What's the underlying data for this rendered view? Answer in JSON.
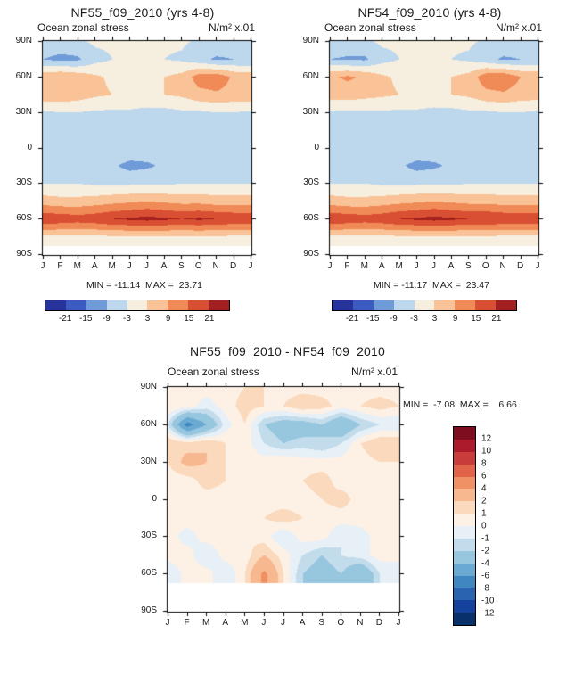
{
  "page": {
    "background": "#ffffff"
  },
  "chart_data": [
    {
      "type": "heatmap",
      "title": "NF55_f09_2010 (yrs 4-8)",
      "field": "Ocean zonal stress",
      "units": "N/m² x.01",
      "stats": "MIN = -11.14  MAX =  23.71",
      "min": -11.14,
      "max": 23.71,
      "x_ticks": [
        "J",
        "F",
        "M",
        "A",
        "M",
        "J",
        "J",
        "A",
        "S",
        "O",
        "N",
        "D",
        "J"
      ],
      "y_ticks": [
        "90N",
        "60N",
        "30N",
        "0",
        "30S",
        "60S",
        "90S"
      ],
      "lats": [
        90,
        75,
        60,
        45,
        30,
        15,
        0,
        -15,
        -30,
        -45,
        -60,
        -75,
        -90
      ],
      "values": [
        [
          -4,
          -4,
          -4,
          -2,
          -2,
          -1,
          -1,
          -2,
          -2,
          -4,
          -4,
          -4,
          -4
        ],
        [
          -9,
          -11,
          -10,
          -5,
          -3,
          -2,
          -2,
          -3,
          -4,
          -7,
          -10,
          -9,
          -9
        ],
        [
          7,
          9,
          7,
          4,
          2,
          2,
          2,
          3,
          5,
          12,
          13,
          8,
          7
        ],
        [
          7,
          7,
          6,
          4,
          3,
          2,
          2,
          3,
          4,
          7,
          8,
          7,
          7
        ],
        [
          -4,
          -3,
          -3,
          -4,
          -4,
          -4,
          -5,
          -5,
          -4,
          -4,
          -3,
          -3,
          -4
        ],
        [
          -5,
          -5,
          -4,
          -4,
          -5,
          -6,
          -7,
          -8,
          -8,
          -7,
          -6,
          -5,
          -5
        ],
        [
          -3,
          -3,
          -3,
          -3,
          -3,
          -4,
          -5,
          -5,
          -4,
          -4,
          -3,
          -3,
          -3
        ],
        [
          -6,
          -6,
          -5,
          -6,
          -8,
          -11,
          -10,
          -8,
          -7,
          -6,
          -6,
          -6,
          -6
        ],
        [
          -3,
          -3,
          -3,
          -4,
          -4,
          -4,
          -4,
          -4,
          -3,
          -3,
          -3,
          -3,
          -3
        ],
        [
          6,
          5,
          5,
          6,
          7,
          8,
          9,
          8,
          7,
          7,
          6,
          6,
          6
        ],
        [
          20,
          19,
          18,
          19,
          21,
          22,
          23,
          22,
          21,
          22,
          21,
          20,
          20
        ],
        [
          2,
          2,
          2,
          2,
          2,
          2,
          2,
          2,
          2,
          2,
          2,
          2,
          2
        ],
        [
          null,
          null,
          null,
          null,
          null,
          null,
          null,
          null,
          null,
          null,
          null,
          null,
          null
        ]
      ],
      "levels": [
        -21,
        -15,
        -9,
        -3,
        3,
        9,
        15,
        21
      ],
      "colors": [
        "#26339b",
        "#3b5bc0",
        "#6f9bd8",
        "#bdd7ec",
        "#f6efe0",
        "#f9c397",
        "#f08a56",
        "#d94f33",
        "#a2201f"
      ],
      "colorbar_labels": [
        "-21",
        "-15",
        "-9",
        "-3",
        "3",
        "9",
        "15",
        "21"
      ],
      "legend_position": "bottom"
    },
    {
      "type": "heatmap",
      "title": "NF54_f09_2010 (yrs 4-8)",
      "field": "Ocean zonal stress",
      "units": "N/m² x.01",
      "stats": "MIN = -11.17  MAX =  23.47",
      "min": -11.17,
      "max": 23.47,
      "x_ticks": [
        "J",
        "F",
        "M",
        "A",
        "M",
        "J",
        "J",
        "A",
        "S",
        "O",
        "N",
        "D",
        "J"
      ],
      "y_ticks": [
        "90N",
        "60N",
        "30N",
        "0",
        "30S",
        "60S",
        "90S"
      ],
      "lats": [
        90,
        75,
        60,
        45,
        30,
        15,
        0,
        -15,
        -30,
        -45,
        -60,
        -75,
        -90
      ],
      "values": [
        [
          -4,
          -4,
          -4,
          -2,
          -2,
          -1,
          -1,
          -2,
          -2,
          -4,
          -4,
          -4,
          -4
        ],
        [
          -9,
          -10,
          -10,
          -5,
          -3,
          -2,
          -2,
          -3,
          -4,
          -7,
          -10,
          -9,
          -9
        ],
        [
          8,
          10,
          8,
          4,
          2,
          2,
          2,
          3,
          5,
          13,
          14,
          9,
          8
        ],
        [
          6,
          6,
          5,
          4,
          3,
          2,
          2,
          3,
          4,
          7,
          8,
          6,
          6
        ],
        [
          -4,
          -4,
          -4,
          -4,
          -4,
          -4,
          -5,
          -5,
          -4,
          -4,
          -3,
          -3,
          -4
        ],
        [
          -5,
          -5,
          -4,
          -4,
          -5,
          -6,
          -7,
          -8,
          -8,
          -7,
          -6,
          -5,
          -5
        ],
        [
          -3,
          -3,
          -3,
          -3,
          -3,
          -4,
          -5,
          -5,
          -4,
          -4,
          -3,
          -3,
          -3
        ],
        [
          -6,
          -6,
          -5,
          -6,
          -8,
          -11,
          -10,
          -8,
          -7,
          -6,
          -6,
          -6,
          -6
        ],
        [
          -3,
          -3,
          -3,
          -4,
          -4,
          -4,
          -4,
          -4,
          -3,
          -3,
          -3,
          -3,
          -3
        ],
        [
          6,
          5,
          5,
          6,
          7,
          8,
          9,
          8,
          7,
          7,
          6,
          6,
          6
        ],
        [
          20,
          19,
          18,
          19,
          21,
          22,
          23,
          22,
          21,
          21,
          20,
          20,
          20
        ],
        [
          2,
          2,
          2,
          2,
          2,
          2,
          2,
          2,
          2,
          2,
          2,
          2,
          2
        ],
        [
          null,
          null,
          null,
          null,
          null,
          null,
          null,
          null,
          null,
          null,
          null,
          null,
          null
        ]
      ],
      "levels": [
        -21,
        -15,
        -9,
        -3,
        3,
        9,
        15,
        21
      ],
      "colors": [
        "#26339b",
        "#3b5bc0",
        "#6f9bd8",
        "#bdd7ec",
        "#f6efe0",
        "#f9c397",
        "#f08a56",
        "#d94f33",
        "#a2201f"
      ],
      "colorbar_labels": [
        "-21",
        "-15",
        "-9",
        "-3",
        "3",
        "9",
        "15",
        "21"
      ],
      "legend_position": "bottom"
    },
    {
      "type": "heatmap",
      "title": "NF55_f09_2010 - NF54_f09_2010",
      "field": "Ocean zonal stress",
      "units": "N/m² x.01",
      "stats": "MIN =  -7.08  MAX =    6.66",
      "min": -7.08,
      "max": 6.66,
      "x_ticks": [
        "J",
        "F",
        "M",
        "A",
        "M",
        "J",
        "J",
        "A",
        "S",
        "O",
        "N",
        "D",
        "J"
      ],
      "y_ticks": [
        "90N",
        "60N",
        "30N",
        "0",
        "30S",
        "60S",
        "90S"
      ],
      "lats": [
        90,
        75,
        60,
        45,
        30,
        15,
        0,
        -15,
        -30,
        -45,
        -60,
        -75,
        -90
      ],
      "values": [
        [
          0.5,
          0.5,
          0.5,
          0.5,
          1,
          1,
          0.5,
          0.5,
          0.5,
          0.5,
          0.5,
          0.5,
          0.5
        ],
        [
          1,
          0.5,
          -0.5,
          0.5,
          1.5,
          1,
          1,
          2,
          1.5,
          0.5,
          1,
          1.5,
          1
        ],
        [
          -1,
          -7,
          -4,
          -0.5,
          1,
          -2,
          -3,
          -3,
          -2,
          -4,
          -2,
          -1,
          -1
        ],
        [
          2,
          1.5,
          2,
          1,
          0.5,
          -1,
          -2,
          -1.5,
          -2,
          -1,
          1,
          2,
          2
        ],
        [
          1,
          2.5,
          2,
          1,
          0.5,
          0.5,
          1,
          0.5,
          0.5,
          0.5,
          0.5,
          1,
          1
        ],
        [
          0.5,
          0.5,
          1.5,
          1,
          0.5,
          0.5,
          0.5,
          1,
          1.5,
          0.5,
          0.5,
          0.5,
          0.5
        ],
        [
          0.5,
          0.5,
          0.5,
          0.5,
          0.5,
          0.5,
          0.5,
          0.5,
          1,
          1.5,
          0.5,
          0.5,
          0.5
        ],
        [
          0.5,
          0.5,
          0.5,
          0.5,
          0.5,
          1,
          1.5,
          1,
          0.5,
          0.5,
          0.5,
          0.5,
          0.5
        ],
        [
          0.5,
          -0.5,
          0.5,
          0.5,
          1,
          0.5,
          -1,
          0.5,
          0.5,
          -1,
          -0.5,
          0.5,
          0.5
        ],
        [
          0.5,
          0.5,
          -1,
          0.5,
          0.5,
          2,
          0.5,
          -1,
          -2,
          -1,
          -0.5,
          0.5,
          0.5
        ],
        [
          -1,
          0.5,
          0.5,
          -1,
          1,
          4.5,
          1,
          -2,
          -3,
          -2,
          -4,
          -1,
          -1
        ],
        [
          null,
          null,
          null,
          null,
          null,
          null,
          null,
          null,
          null,
          null,
          null,
          null,
          null
        ],
        [
          null,
          null,
          null,
          null,
          null,
          null,
          null,
          null,
          null,
          null,
          null,
          null,
          null
        ]
      ],
      "levels": [
        -12,
        -10,
        -8,
        -6,
        -4,
        -2,
        -1,
        0,
        1,
        2,
        4,
        6,
        8,
        10,
        12
      ],
      "colors": [
        "#08306b",
        "#14419c",
        "#2a63b0",
        "#3f87c0",
        "#6aaad2",
        "#97c6df",
        "#c2dcec",
        "#e6f0f6",
        "#fdf1e6",
        "#fbd9bd",
        "#f7b890",
        "#ef9065",
        "#e0634a",
        "#c93c3c",
        "#ab1b2b",
        "#7f0d20"
      ],
      "colorbar_labels": [
        "12",
        "10",
        "8",
        "6",
        "4",
        "2",
        "1",
        "0",
        "-1",
        "-2",
        "-4",
        "-6",
        "-8",
        "-10",
        "-12"
      ],
      "legend_position": "right"
    }
  ]
}
